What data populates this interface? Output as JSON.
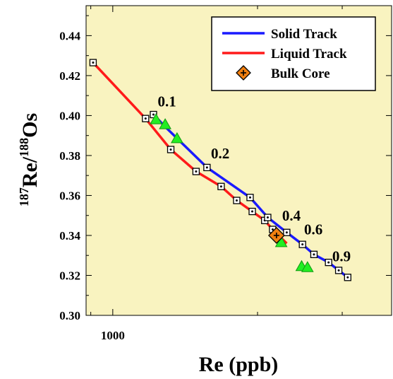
{
  "chart_data": {
    "type": "line",
    "title": "",
    "xlabel": "Re (ppb)",
    "ylabel_sup1": "187",
    "ylabel_mid": "Re/",
    "ylabel_sup2": "188",
    "ylabel_end": "Os",
    "xscale": "log",
    "xlim": [
      880,
      3800
    ],
    "ylim": [
      0.3,
      0.455
    ],
    "x_ticks": [
      {
        "value": 1000,
        "label": "1000"
      }
    ],
    "y_ticks": [
      {
        "value": 0.3,
        "label": "0.30"
      },
      {
        "value": 0.32,
        "label": "0.32"
      },
      {
        "value": 0.34,
        "label": "0.34"
      },
      {
        "value": 0.36,
        "label": "0.36"
      },
      {
        "value": 0.38,
        "label": "0.38"
      },
      {
        "value": 0.4,
        "label": "0.40"
      },
      {
        "value": 0.42,
        "label": "0.42"
      },
      {
        "value": 0.44,
        "label": "0.44"
      }
    ],
    "background": "#f9f3c0",
    "legend_position": "top-right",
    "series": [
      {
        "name": "Solid Track",
        "color": "#1a1aff",
        "points": [
          [
            1215,
            0.4005
          ],
          [
            1290,
            0.394
          ],
          [
            1570,
            0.374
          ],
          [
            1930,
            0.359
          ],
          [
            2100,
            0.349
          ],
          [
            2300,
            0.3415
          ],
          [
            2480,
            0.3355
          ],
          [
            2620,
            0.3305
          ],
          [
            2810,
            0.3265
          ],
          [
            2950,
            0.3225
          ],
          [
            3080,
            0.319
          ]
        ]
      },
      {
        "name": "Liquid Track",
        "color": "#ff1a1a",
        "points": [
          [
            910,
            0.4265
          ],
          [
            1170,
            0.3985
          ],
          [
            1320,
            0.383
          ],
          [
            1490,
            0.372
          ],
          [
            1680,
            0.3645
          ],
          [
            1810,
            0.3575
          ],
          [
            1950,
            0.352
          ],
          [
            2070,
            0.3475
          ],
          [
            2150,
            0.343
          ],
          [
            2300,
            0.336
          ]
        ]
      }
    ],
    "markers": [
      [
        910,
        0.4265
      ],
      [
        1170,
        0.3985
      ],
      [
        1215,
        0.4005
      ],
      [
        1320,
        0.383
      ],
      [
        1490,
        0.372
      ],
      [
        1570,
        0.374
      ],
      [
        1680,
        0.3645
      ],
      [
        1810,
        0.3575
      ],
      [
        1930,
        0.359
      ],
      [
        1950,
        0.352
      ],
      [
        2070,
        0.3475
      ],
      [
        2100,
        0.349
      ],
      [
        2150,
        0.343
      ],
      [
        2300,
        0.3415
      ],
      [
        2480,
        0.3355
      ],
      [
        2620,
        0.3305
      ],
      [
        2810,
        0.3265
      ],
      [
        2950,
        0.3225
      ],
      [
        3080,
        0.319
      ]
    ],
    "triangles": {
      "color": "#22ee22",
      "points": [
        [
          1230,
          0.398
        ],
        [
          1285,
          0.3955
        ],
        [
          1360,
          0.3885
        ],
        [
          2240,
          0.3365
        ],
        [
          2470,
          0.3245
        ],
        [
          2540,
          0.324
        ]
      ]
    },
    "bulk_core": {
      "name": "Bulk Core",
      "color": "#f07f10",
      "x": 2190,
      "y": 0.34
    },
    "annotations": [
      {
        "text": "0.1",
        "x": 1240,
        "y": 0.4045
      },
      {
        "text": "0.2",
        "x": 1600,
        "y": 0.3785
      },
      {
        "text": "0.4",
        "x": 2250,
        "y": 0.3475
      },
      {
        "text": "0.6",
        "x": 2500,
        "y": 0.3405
      },
      {
        "text": "0.9",
        "x": 2860,
        "y": 0.327
      }
    ]
  }
}
